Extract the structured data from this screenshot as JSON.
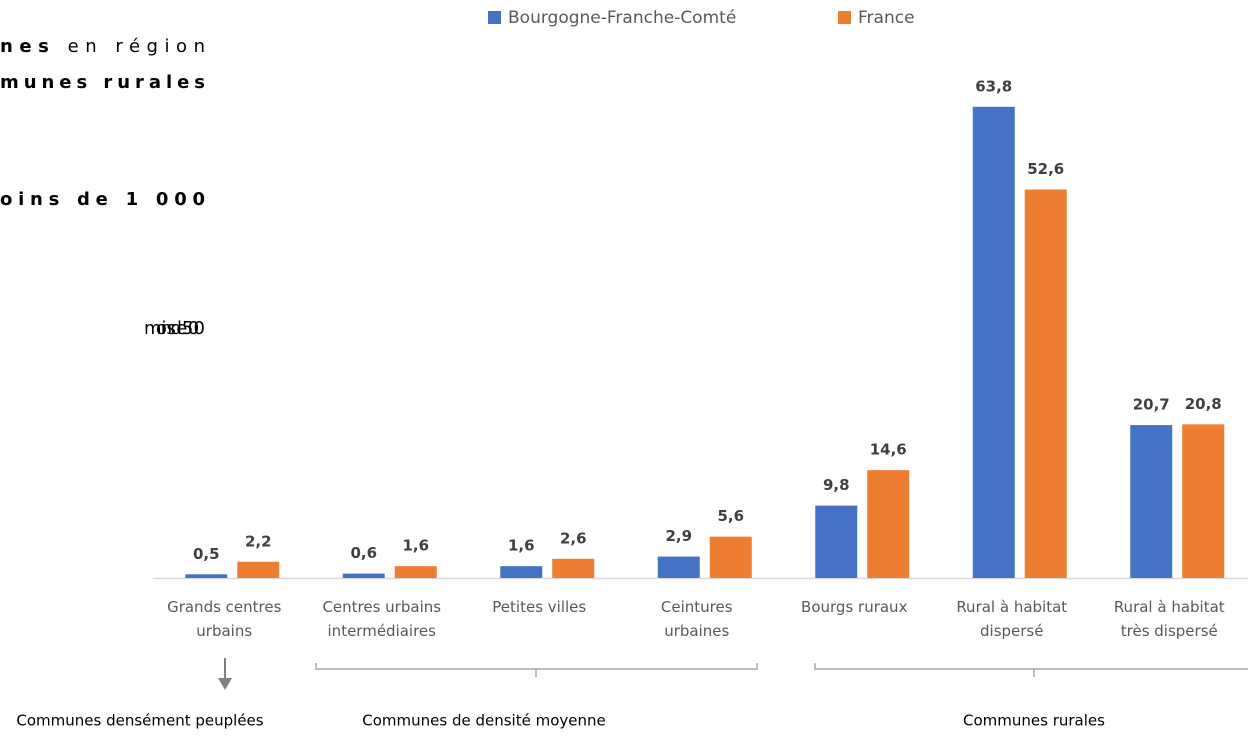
{
  "intro_lines": [
    {
      "bold": "nes",
      "normal": " en région"
    },
    {
      "bold": "munes rurales"
    },
    {
      "bold": "oins de 1 000"
    },
    {
      "normal": "moins de 500"
    }
  ],
  "chart_data": {
    "type": "bar",
    "categories": [
      "Grands centres\nurbains",
      "Centres urbains\nintermédiaires",
      "Petites villes",
      "Ceintures\nurbaines",
      "Bourgs ruraux",
      "Rural à habitat\ndispersé",
      "Rural à habitat\ntrès dispersé"
    ],
    "series": [
      {
        "name": "Bourgogne-Franche-Comté",
        "color": "#4472c4",
        "values": [
          0.5,
          0.6,
          1.6,
          2.9,
          9.8,
          63.8,
          20.7
        ],
        "value_labels": [
          "0,5",
          "0,6",
          "1,6",
          "2,9",
          "9,8",
          "63,8",
          "20,7"
        ]
      },
      {
        "name": "France",
        "color": "#ed7d31",
        "values": [
          2.2,
          1.6,
          2.6,
          5.6,
          14.6,
          52.6,
          20.8
        ],
        "value_labels": [
          "2,2",
          "1,6",
          "2,6",
          "5,6",
          "14,6",
          "52,6",
          "20,8"
        ]
      }
    ],
    "ylim": [
      0,
      70
    ],
    "legend": "top",
    "group_labels": [
      "Communes densément peuplées",
      "Communes de densité moyenne",
      "Communes rurales"
    ]
  }
}
